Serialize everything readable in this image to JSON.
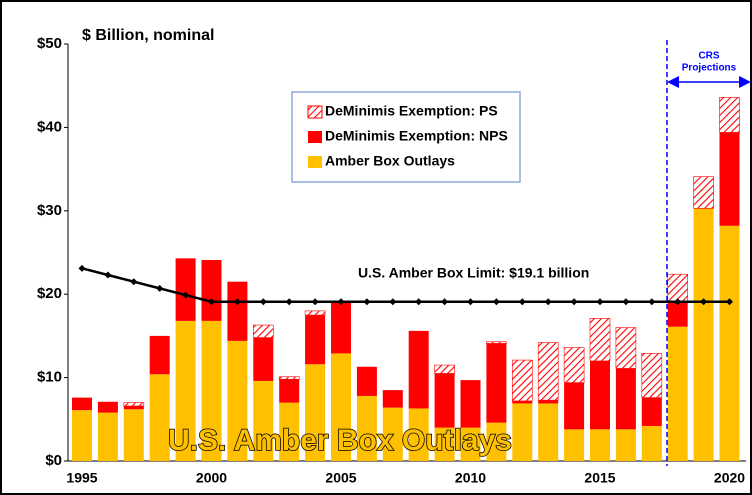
{
  "chart_data": {
    "type": "stacked_bar_line",
    "title": "U.S. Amber Box Outlays",
    "subtitle": "$ Billion, nominal",
    "categories": [
      "1995",
      null,
      null,
      null,
      null,
      "2000",
      null,
      null,
      null,
      null,
      "2005",
      null,
      null,
      null,
      null,
      "2010",
      null,
      null,
      null,
      null,
      "2015",
      null,
      null,
      null,
      null,
      "2020"
    ],
    "series": [
      {
        "name": "Amber Box Outlays",
        "color": "#ffc000",
        "values": [
          6.1,
          5.8,
          6.2,
          10.4,
          16.8,
          16.8,
          14.4,
          9.6,
          7.0,
          11.6,
          12.9,
          7.8,
          6.4,
          6.3,
          4.0,
          4.0,
          4.6,
          6.9,
          6.9,
          3.8,
          3.8,
          3.8,
          4.2,
          16.1,
          30.3,
          28.2
        ]
      },
      {
        "name": "DeMinimis Exemption: NPS",
        "color": "#ff0000",
        "values": [
          1.5,
          1.3,
          0.4,
          4.6,
          7.5,
          7.3,
          7.1,
          5.2,
          2.8,
          5.9,
          6.1,
          3.5,
          2.1,
          9.3,
          6.5,
          5.7,
          9.5,
          0.3,
          0.4,
          5.6,
          8.2,
          7.3,
          3.4,
          3.1,
          0,
          11.2
        ]
      },
      {
        "name": "DeMinimis Exemption: PS",
        "color": "#ff0000",
        "hatch": true,
        "values": [
          0,
          0,
          0.4,
          0,
          0,
          0,
          0,
          1.5,
          0.3,
          0.5,
          0,
          0,
          0,
          0,
          1.0,
          0,
          0.2,
          4.9,
          6.9,
          4.2,
          5.1,
          4.9,
          5.3,
          3.2,
          3.8,
          4.2
        ]
      },
      {
        "name": "U.S. Amber Box Limit: $19.1 billion",
        "type": "line",
        "color": "#000000",
        "values": [
          23.1,
          22.3,
          21.5,
          20.7,
          19.9,
          19.1,
          19.1,
          19.1,
          19.1,
          19.1,
          19.1,
          19.1,
          19.1,
          19.1,
          19.1,
          19.1,
          19.1,
          19.1,
          19.1,
          19.1,
          19.1,
          19.1,
          19.1,
          19.1,
          19.1,
          19.1
        ]
      }
    ],
    "projection_label": [
      "CRS",
      "Projections"
    ],
    "ylim": [
      0,
      50
    ],
    "yticks": [
      {
        "value": 0,
        "label": "$0"
      },
      {
        "value": 10,
        "label": "$10"
      },
      {
        "value": 20,
        "label": "$20"
      },
      {
        "value": 30,
        "label": "$30"
      },
      {
        "value": 40,
        "label": "$40"
      },
      {
        "value": 50,
        "label": "$50"
      }
    ]
  }
}
